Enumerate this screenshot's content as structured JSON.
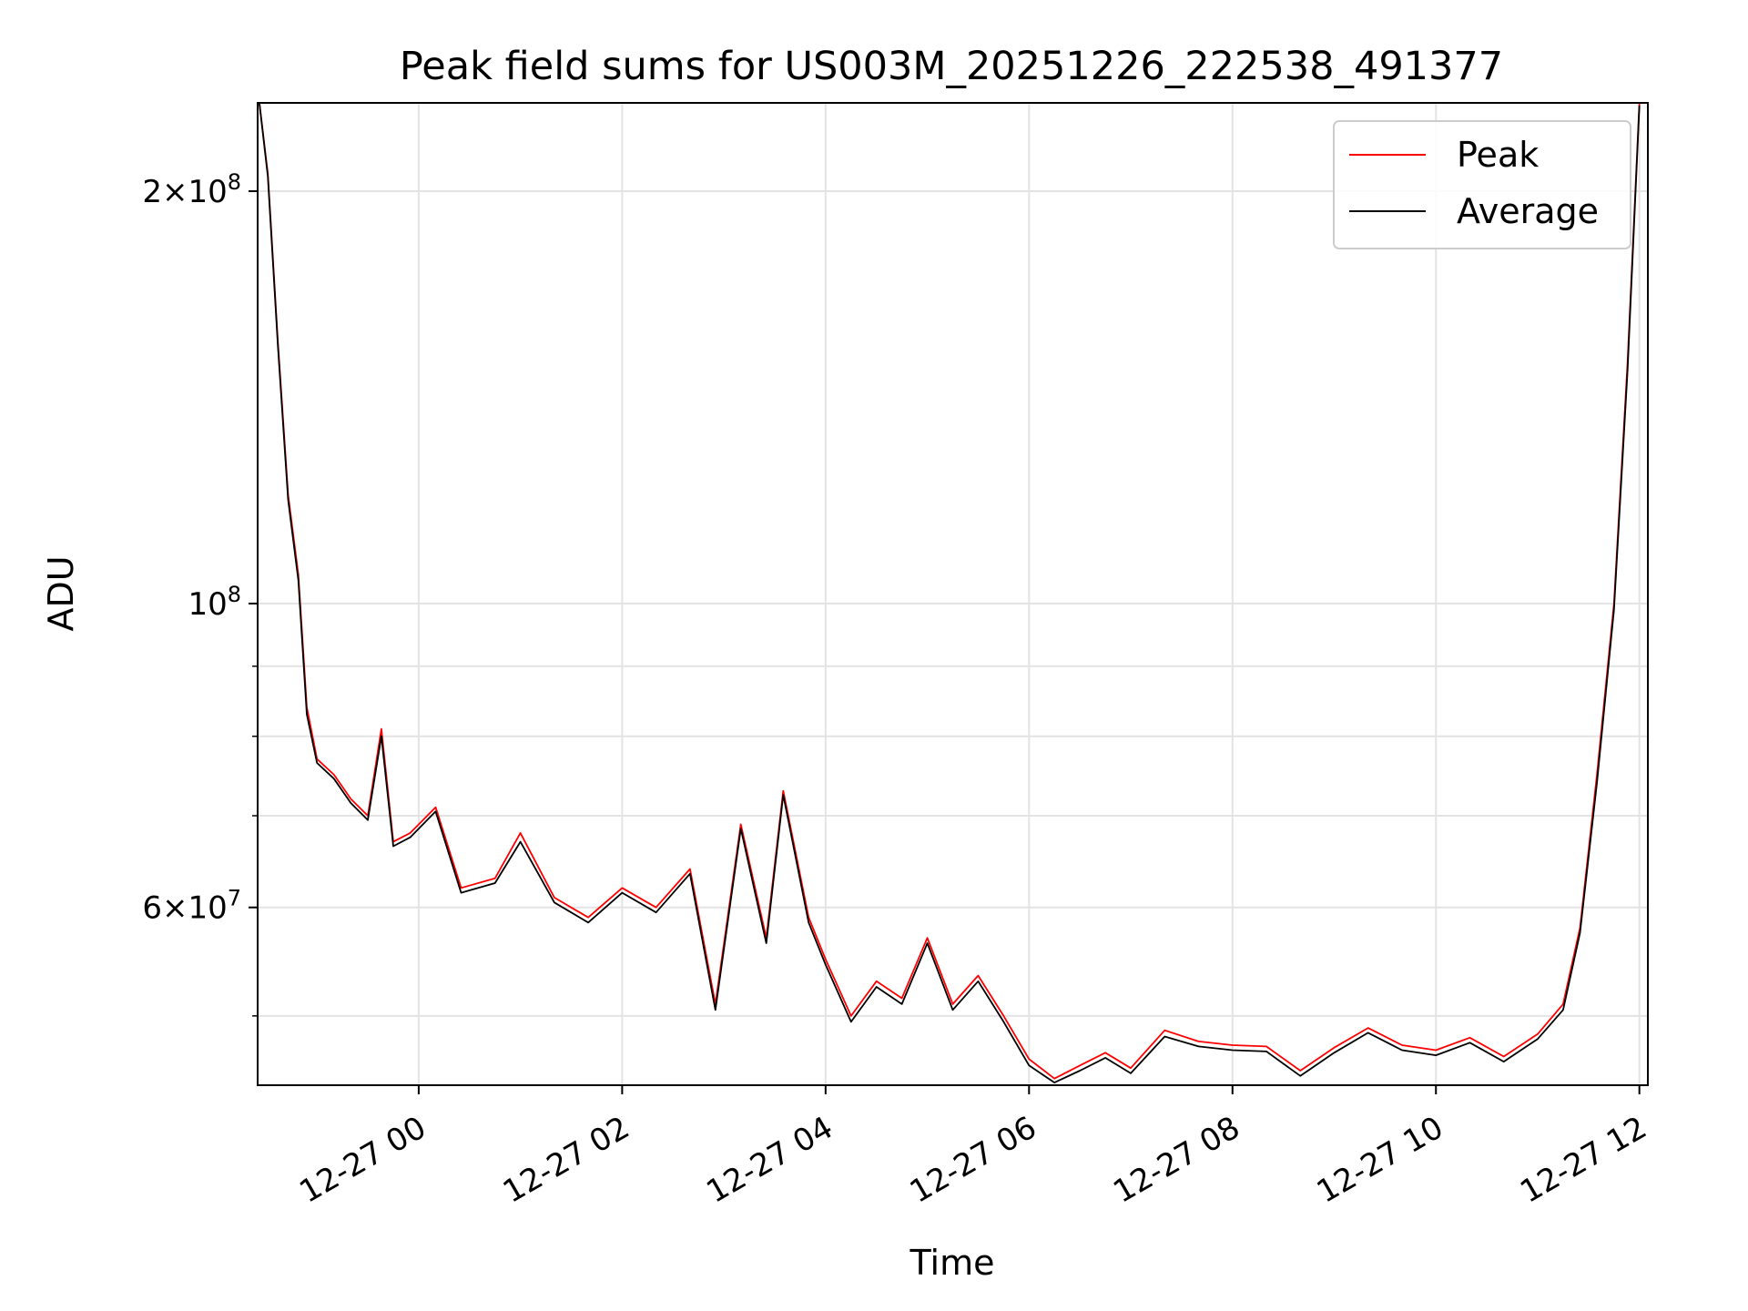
{
  "chart_data": {
    "type": "line",
    "title": "Peak field sums for US003M_20251226_222538_491377",
    "xlabel": "Time",
    "ylabel": "ADU",
    "y_scale": "log",
    "ylim": [
      44500000,
      232000000
    ],
    "x_range": [
      "2025-12-26 22:25",
      "2025-12-27 12:05"
    ],
    "x_ticks": [
      {
        "time": "2025-12-27 00:00",
        "label": "12-27 00"
      },
      {
        "time": "2025-12-27 02:00",
        "label": "12-27 02"
      },
      {
        "time": "2025-12-27 04:00",
        "label": "12-27 04"
      },
      {
        "time": "2025-12-27 06:00",
        "label": "12-27 06"
      },
      {
        "time": "2025-12-27 08:00",
        "label": "12-27 08"
      },
      {
        "time": "2025-12-27 10:00",
        "label": "12-27 10"
      },
      {
        "time": "2025-12-27 12:00",
        "label": "12-27 12"
      }
    ],
    "y_major_ticks": [
      {
        "value": 60000000,
        "label_mantissa": "6",
        "label_times": "×",
        "label_base": "10",
        "label_exp": "7"
      },
      {
        "value": 100000000,
        "label_mantissa": "",
        "label_times": "",
        "label_base": "10",
        "label_exp": "8"
      },
      {
        "value": 200000000,
        "label_mantissa": "2",
        "label_times": "×",
        "label_base": "10",
        "label_exp": "8"
      }
    ],
    "y_minor_ticks": [
      50000000,
      70000000,
      80000000,
      90000000
    ],
    "grid": true,
    "legend_position": "top-right",
    "series": [
      {
        "name": "Peak",
        "color": "#ff0000",
        "points": [
          [
            "2025-12-26 22:26",
            232000000
          ],
          [
            "2025-12-26 22:31",
            206000000
          ],
          [
            "2025-12-26 22:37",
            155000000
          ],
          [
            "2025-12-26 22:43",
            120000000
          ],
          [
            "2025-12-26 22:49",
            105000000
          ],
          [
            "2025-12-26 22:54",
            84000000
          ],
          [
            "2025-12-26 23:00",
            77000000
          ],
          [
            "2025-12-26 23:10",
            75000000
          ],
          [
            "2025-12-26 23:20",
            72000000
          ],
          [
            "2025-12-26 23:30",
            70000000
          ],
          [
            "2025-12-26 23:38",
            81000000
          ],
          [
            "2025-12-26 23:45",
            67000000
          ],
          [
            "2025-12-26 23:55",
            68000000
          ],
          [
            "2025-12-27 00:10",
            71000000
          ],
          [
            "2025-12-27 00:25",
            62000000
          ],
          [
            "2025-12-27 00:45",
            63000000
          ],
          [
            "2025-12-27 01:00",
            68000000
          ],
          [
            "2025-12-27 01:20",
            61000000
          ],
          [
            "2025-12-27 01:40",
            59000000
          ],
          [
            "2025-12-27 02:00",
            62000000
          ],
          [
            "2025-12-27 02:20",
            60000000
          ],
          [
            "2025-12-27 02:40",
            64000000
          ],
          [
            "2025-12-27 02:55",
            51000000
          ],
          [
            "2025-12-27 03:10",
            69000000
          ],
          [
            "2025-12-27 03:25",
            57000000
          ],
          [
            "2025-12-27 03:35",
            73000000
          ],
          [
            "2025-12-27 03:50",
            59000000
          ],
          [
            "2025-12-27 04:00",
            55000000
          ],
          [
            "2025-12-27 04:15",
            50000000
          ],
          [
            "2025-12-27 04:30",
            53000000
          ],
          [
            "2025-12-27 04:45",
            51500000
          ],
          [
            "2025-12-27 05:00",
            57000000
          ],
          [
            "2025-12-27 05:15",
            51000000
          ],
          [
            "2025-12-27 05:30",
            53500000
          ],
          [
            "2025-12-27 05:45",
            50000000
          ],
          [
            "2025-12-27 06:00",
            46500000
          ],
          [
            "2025-12-27 06:15",
            45000000
          ],
          [
            "2025-12-27 06:30",
            46000000
          ],
          [
            "2025-12-27 06:45",
            47000000
          ],
          [
            "2025-12-27 07:00",
            45800000
          ],
          [
            "2025-12-27 07:20",
            48800000
          ],
          [
            "2025-12-27 07:40",
            47900000
          ],
          [
            "2025-12-27 08:00",
            47600000
          ],
          [
            "2025-12-27 08:20",
            47500000
          ],
          [
            "2025-12-27 08:40",
            45600000
          ],
          [
            "2025-12-27 09:00",
            47400000
          ],
          [
            "2025-12-27 09:20",
            49000000
          ],
          [
            "2025-12-27 09:40",
            47600000
          ],
          [
            "2025-12-27 10:00",
            47200000
          ],
          [
            "2025-12-27 10:20",
            48200000
          ],
          [
            "2025-12-27 10:40",
            46700000
          ],
          [
            "2025-12-27 11:00",
            48500000
          ],
          [
            "2025-12-27 11:15",
            51000000
          ],
          [
            "2025-12-27 11:25",
            58000000
          ],
          [
            "2025-12-27 11:35",
            75000000
          ],
          [
            "2025-12-27 11:45",
            100000000
          ],
          [
            "2025-12-27 11:53",
            150000000
          ],
          [
            "2025-12-27 12:00",
            232000000
          ]
        ]
      },
      {
        "name": "Average",
        "color": "#000000",
        "points": [
          [
            "2025-12-26 22:26",
            232000000
          ],
          [
            "2025-12-26 22:31",
            205000000
          ],
          [
            "2025-12-26 22:37",
            154000000
          ],
          [
            "2025-12-26 22:43",
            119000000
          ],
          [
            "2025-12-26 22:49",
            104000000
          ],
          [
            "2025-12-26 22:54",
            83000000
          ],
          [
            "2025-12-26 23:00",
            76500000
          ],
          [
            "2025-12-26 23:10",
            74500000
          ],
          [
            "2025-12-26 23:20",
            71500000
          ],
          [
            "2025-12-26 23:30",
            69500000
          ],
          [
            "2025-12-26 23:38",
            80000000
          ],
          [
            "2025-12-26 23:45",
            66500000
          ],
          [
            "2025-12-26 23:55",
            67500000
          ],
          [
            "2025-12-27 00:10",
            70500000
          ],
          [
            "2025-12-27 00:25",
            61500000
          ],
          [
            "2025-12-27 00:45",
            62500000
          ],
          [
            "2025-12-27 01:00",
            67000000
          ],
          [
            "2025-12-27 01:20",
            60500000
          ],
          [
            "2025-12-27 01:40",
            58500000
          ],
          [
            "2025-12-27 02:00",
            61500000
          ],
          [
            "2025-12-27 02:20",
            59500000
          ],
          [
            "2025-12-27 02:40",
            63500000
          ],
          [
            "2025-12-27 02:55",
            50500000
          ],
          [
            "2025-12-27 03:10",
            68500000
          ],
          [
            "2025-12-27 03:25",
            56500000
          ],
          [
            "2025-12-27 03:35",
            72500000
          ],
          [
            "2025-12-27 03:50",
            58500000
          ],
          [
            "2025-12-27 04:00",
            54500000
          ],
          [
            "2025-12-27 04:15",
            49500000
          ],
          [
            "2025-12-27 04:30",
            52500000
          ],
          [
            "2025-12-27 04:45",
            51000000
          ],
          [
            "2025-12-27 05:00",
            56500000
          ],
          [
            "2025-12-27 05:15",
            50500000
          ],
          [
            "2025-12-27 05:30",
            53000000
          ],
          [
            "2025-12-27 05:45",
            49500000
          ],
          [
            "2025-12-27 06:00",
            46000000
          ],
          [
            "2025-12-27 06:15",
            44700000
          ],
          [
            "2025-12-27 06:30",
            45600000
          ],
          [
            "2025-12-27 06:45",
            46600000
          ],
          [
            "2025-12-27 07:00",
            45400000
          ],
          [
            "2025-12-27 07:20",
            48300000
          ],
          [
            "2025-12-27 07:40",
            47500000
          ],
          [
            "2025-12-27 08:00",
            47200000
          ],
          [
            "2025-12-27 08:20",
            47100000
          ],
          [
            "2025-12-27 08:40",
            45200000
          ],
          [
            "2025-12-27 09:00",
            47000000
          ],
          [
            "2025-12-27 09:20",
            48600000
          ],
          [
            "2025-12-27 09:40",
            47200000
          ],
          [
            "2025-12-27 10:00",
            46800000
          ],
          [
            "2025-12-27 10:20",
            47800000
          ],
          [
            "2025-12-27 10:40",
            46300000
          ],
          [
            "2025-12-27 11:00",
            48100000
          ],
          [
            "2025-12-27 11:15",
            50500000
          ],
          [
            "2025-12-27 11:25",
            57500000
          ],
          [
            "2025-12-27 11:35",
            74000000
          ],
          [
            "2025-12-27 11:45",
            99000000
          ],
          [
            "2025-12-27 11:53",
            148000000
          ],
          [
            "2025-12-27 12:00",
            231000000
          ]
        ]
      }
    ]
  }
}
